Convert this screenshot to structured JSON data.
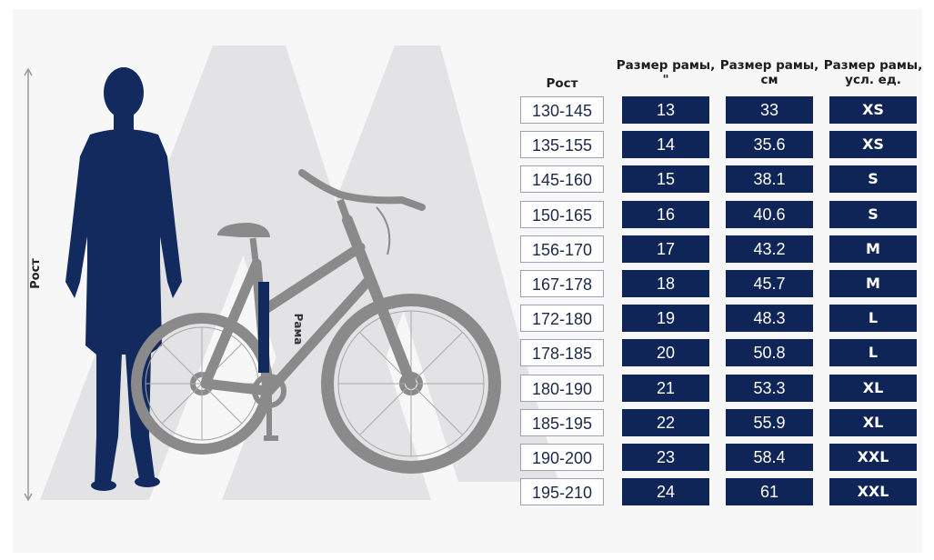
{
  "illustration": {
    "height_axis_label": "Рост",
    "frame_label": "Рама"
  },
  "table": {
    "headers": {
      "height": "Рост",
      "frame_inch": "Размер рамы, \"",
      "frame_cm": "Размер рамы, см",
      "frame_size": "Размер рамы, усл. ед."
    },
    "rows": [
      {
        "height": "130-145",
        "inch": "13",
        "cm": "33",
        "size": "XS"
      },
      {
        "height": "135-155",
        "inch": "14",
        "cm": "35.6",
        "size": "XS"
      },
      {
        "height": "145-160",
        "inch": "15",
        "cm": "38.1",
        "size": "S"
      },
      {
        "height": "150-165",
        "inch": "16",
        "cm": "40.6",
        "size": "S"
      },
      {
        "height": "156-170",
        "inch": "17",
        "cm": "43.2",
        "size": "M"
      },
      {
        "height": "167-178",
        "inch": "18",
        "cm": "45.7",
        "size": "M"
      },
      {
        "height": "172-180",
        "inch": "19",
        "cm": "48.3",
        "size": "L"
      },
      {
        "height": "178-185",
        "inch": "20",
        "cm": "50.8",
        "size": "L"
      },
      {
        "height": "180-190",
        "inch": "21",
        "cm": "53.3",
        "size": "XL"
      },
      {
        "height": "185-195",
        "inch": "22",
        "cm": "55.9",
        "size": "XL"
      },
      {
        "height": "190-200",
        "inch": "23",
        "cm": "58.4",
        "size": "XXL"
      },
      {
        "height": "195-210",
        "inch": "24",
        "cm": "61",
        "size": "XXL"
      }
    ]
  },
  "colors": {
    "navy": "#0f2557",
    "bike_gray": "#8a8a8a",
    "watermark": "#e2e2e4",
    "background": "#f7f7f8"
  }
}
